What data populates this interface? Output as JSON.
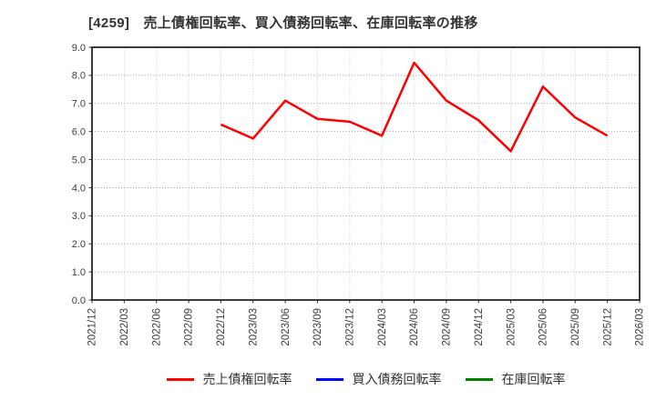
{
  "chart_data": {
    "type": "line",
    "title": "[4259]　売上債権回転率、買入債務回転率、在庫回転率の推移",
    "x_labels": [
      "2021/12",
      "2022/03",
      "2022/06",
      "2022/09",
      "2022/12",
      "2023/03",
      "2023/06",
      "2023/09",
      "2023/12",
      "2024/03",
      "2024/06",
      "2024/09",
      "2024/12",
      "2025/03",
      "2025/06",
      "2025/09",
      "2025/12",
      "2026/03"
    ],
    "ylim": [
      0.0,
      9.0
    ],
    "y_ticks": [
      0.0,
      1.0,
      2.0,
      3.0,
      4.0,
      5.0,
      6.0,
      7.0,
      8.0,
      9.0
    ],
    "grid": true,
    "legend_position": "bottom",
    "series": [
      {
        "name": "売上債権回転率",
        "color": "#ff0000",
        "values": [
          null,
          null,
          null,
          null,
          6.25,
          5.75,
          7.1,
          6.45,
          6.35,
          5.85,
          8.45,
          7.1,
          6.4,
          5.3,
          7.6,
          6.5,
          5.85,
          null
        ]
      },
      {
        "name": "買入債務回転率",
        "color": "#0000ff",
        "values": [
          null,
          null,
          null,
          null,
          null,
          null,
          null,
          null,
          null,
          null,
          null,
          null,
          null,
          null,
          null,
          null,
          null,
          null
        ]
      },
      {
        "name": "在庫回転率",
        "color": "#008000",
        "values": [
          null,
          null,
          null,
          null,
          null,
          null,
          null,
          null,
          null,
          null,
          null,
          null,
          null,
          null,
          null,
          null,
          null,
          null
        ]
      }
    ]
  }
}
